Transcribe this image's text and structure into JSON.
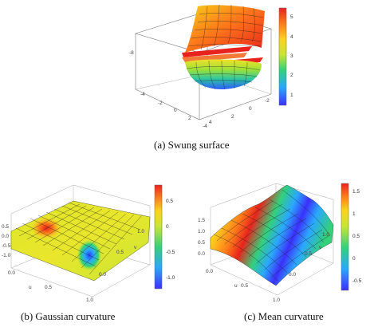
{
  "figure": {
    "panels": [
      {
        "id": "swung",
        "caption": "(a) Swung surface",
        "axis_ticks": [
          "4",
          "2",
          "0",
          "-2",
          "-4",
          "-4",
          "-2",
          "0",
          "2",
          "4",
          "-8"
        ],
        "colorbar_ticks": [
          "5",
          "4",
          "3",
          "2",
          "1"
        ],
        "colormap": [
          "#3b2fff",
          "#2aa7ff",
          "#33d17a",
          "#c8e534",
          "#ffd21f",
          "#ff7a1a",
          "#e8231d"
        ]
      },
      {
        "id": "gaussian",
        "caption": "(b) Gaussian curvature",
        "axis_ticks": [
          "0.5",
          "0.0",
          "-0.5",
          "-1.0",
          "0.0",
          "0.5",
          "1.0",
          "1.0",
          "0.5",
          "0.0",
          "v",
          "u"
        ],
        "colorbar_ticks": [
          "0.5",
          "0",
          "-0.5",
          "-1.0"
        ],
        "colormap": [
          "#3b2fff",
          "#2aa7ff",
          "#33d17a",
          "#c8e534",
          "#ffd21f",
          "#ff7a1a",
          "#e8231d"
        ]
      },
      {
        "id": "mean",
        "caption": "(c) Mean curvature",
        "axis_ticks": [
          "1.5",
          "1.0",
          "0.5",
          "0.0",
          "0.0",
          "0.5",
          "1.0",
          "1.0",
          "0.5",
          "0.0",
          "v",
          "u"
        ],
        "colorbar_ticks": [
          "1.5",
          "1",
          "0.5",
          "0",
          "-0.5"
        ],
        "colormap": [
          "#3b2fff",
          "#2aa7ff",
          "#33d17a",
          "#c8e534",
          "#ffd21f",
          "#ff7a1a",
          "#e8231d"
        ]
      }
    ]
  }
}
